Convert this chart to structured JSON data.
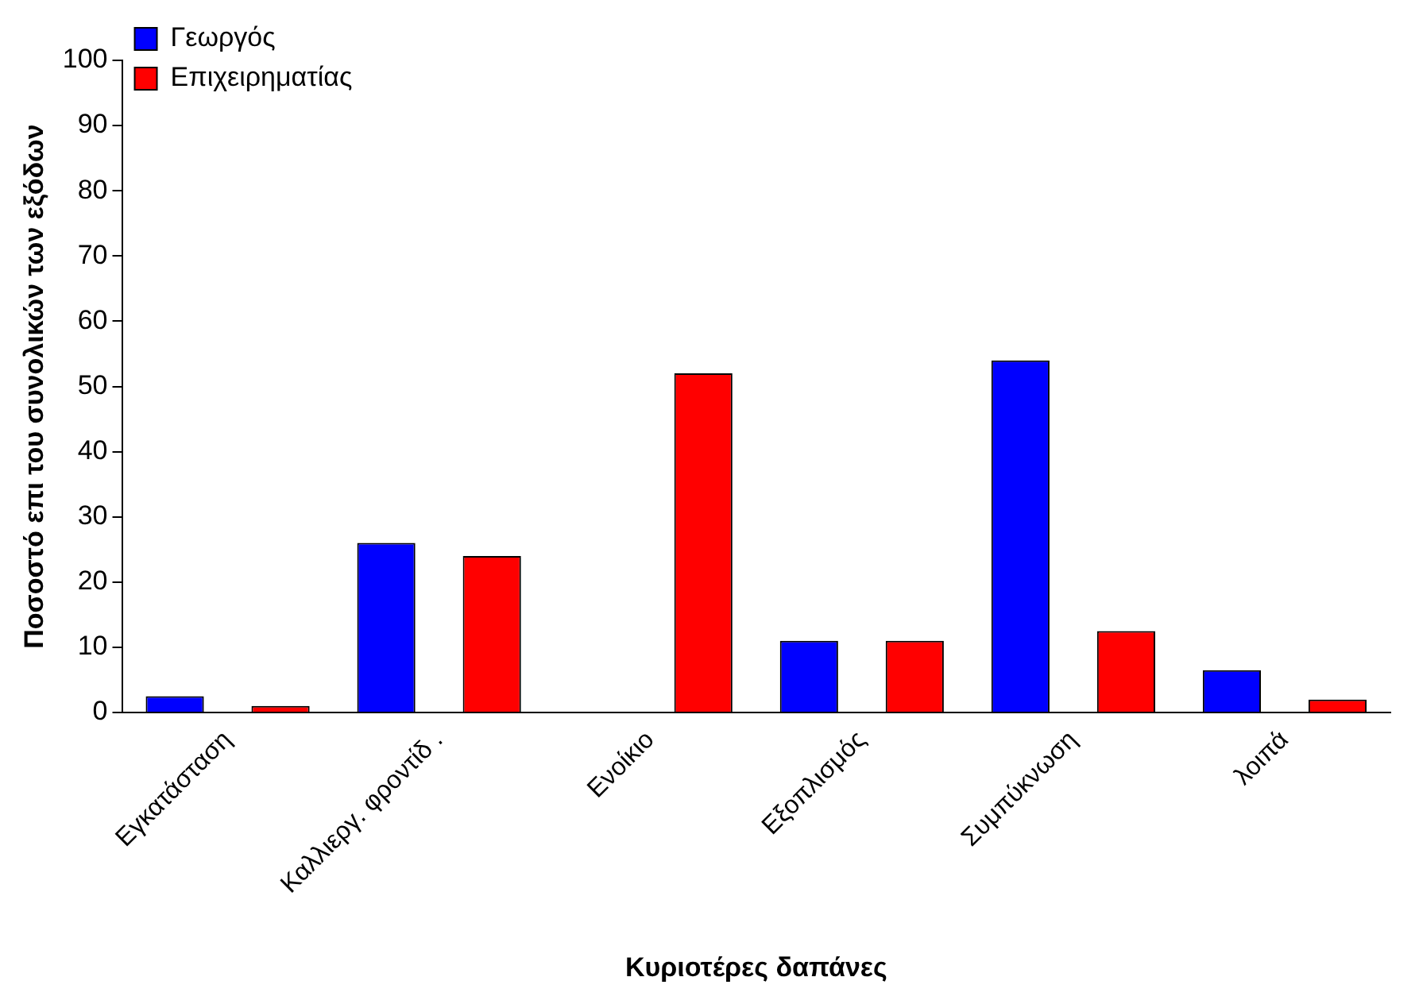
{
  "chart_data": {
    "type": "bar",
    "xlabel": "Κυριοτέρες δαπάνες",
    "ylabel": "Ποσοστό επι του συνολικών των εξόδων",
    "categories": [
      "Εγκατάσταση",
      "Καλλιεργ. φροντίδ .",
      "Ενοίκιο",
      "Εξοπλισμός",
      "Συμπύκνωση",
      "λοιπά"
    ],
    "series": [
      {
        "name": "Γεωργός",
        "color": "#0000ff",
        "values": [
          2.5,
          26,
          0,
          11,
          54,
          6.5
        ]
      },
      {
        "name": "Επιχειρηματίας",
        "color": "#ff0000",
        "values": [
          1,
          24,
          52,
          11,
          12.5,
          2
        ]
      }
    ],
    "ylim": [
      0,
      100
    ],
    "yticks": [
      0,
      10,
      20,
      30,
      40,
      50,
      60,
      70,
      80,
      90,
      100
    ],
    "grid": false,
    "legend": "top left"
  }
}
